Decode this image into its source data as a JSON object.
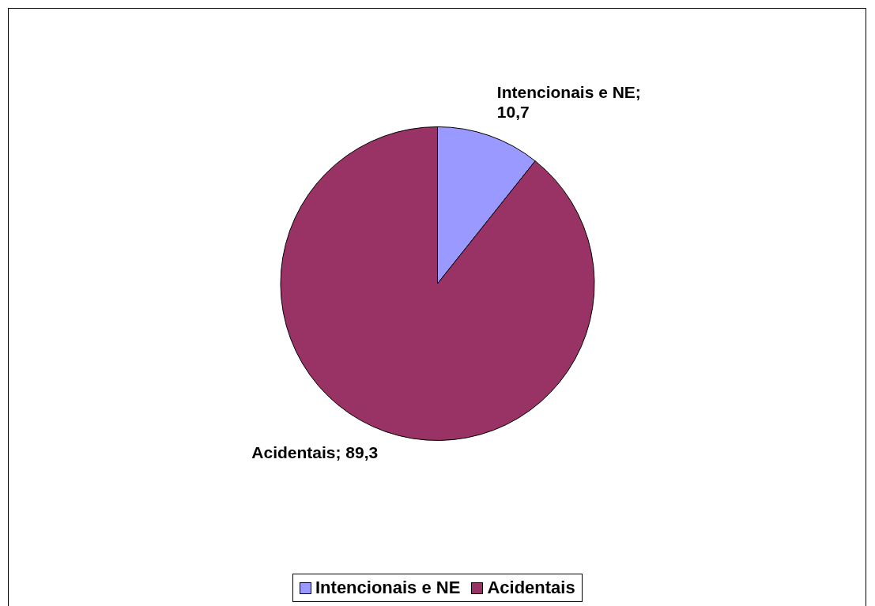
{
  "chart_data": {
    "type": "pie",
    "categories": [
      "Intencionais e NE",
      "Acidentais"
    ],
    "values": [
      10.7,
      89.3
    ],
    "colors": [
      "#9999ff",
      "#993366"
    ],
    "value_labels": [
      "Intencionais e NE; 10,7",
      "Acidentais; 89,3"
    ],
    "legend": "bottom"
  }
}
